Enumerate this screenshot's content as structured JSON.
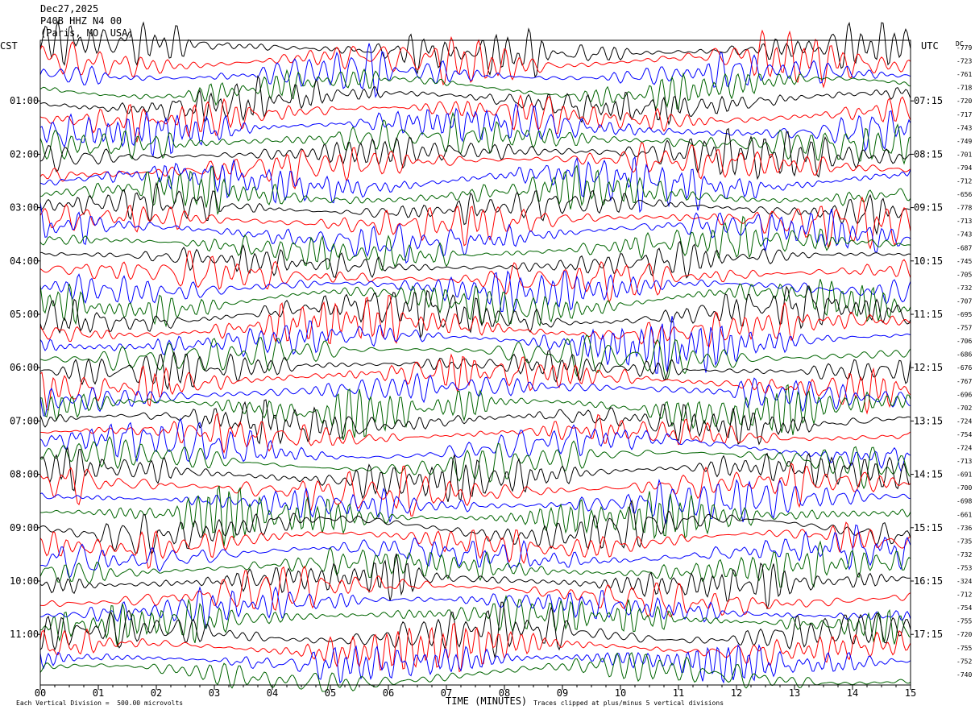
{
  "header": {
    "date": "Dec27,2025",
    "station": "P40B HHZ N4 00",
    "location": "(Paris, MO, USA)"
  },
  "left_tz": "CST",
  "right_tz": "UTC",
  "dc_header": "DC",
  "footer": {
    "scale_note": "Each Vertical Division =  500.00 microvolts",
    "clip_note": "Traces clipped at plus/minus 5 vertical divisions"
  },
  "chart_data": {
    "type": "line",
    "title": "",
    "xlabel": "TIME (MINUTES)",
    "ylabel": "",
    "xlim": [
      0,
      15
    ],
    "x_ticks": [
      "00",
      "01",
      "02",
      "03",
      "04",
      "05",
      "06",
      "07",
      "08",
      "09",
      "10",
      "11",
      "12",
      "13",
      "14",
      "15"
    ],
    "left_hour_labels": [
      "01:00",
      "02:00",
      "03:00",
      "04:00",
      "05:00",
      "06:00",
      "07:00",
      "08:00",
      "09:00",
      "10:00",
      "11:00"
    ],
    "right_hour_labels": [
      "07:15",
      "08:15",
      "09:15",
      "10:15",
      "11:15",
      "12:15",
      "13:15",
      "14:15",
      "15:15",
      "16:15",
      "17:15"
    ],
    "trace_colors": [
      "#000000",
      "#ff0000",
      "#0000ff",
      "#006400"
    ],
    "trace_count": 48,
    "dc_offsets": [
      -779,
      -723,
      -761,
      -718,
      -720,
      -717,
      -743,
      -749,
      -701,
      -794,
      -712,
      -656,
      -778,
      -713,
      -743,
      -687,
      -745,
      -705,
      -732,
      -707,
      -695,
      -757,
      -706,
      -686,
      -676,
      -767,
      -696,
      -702,
      -724,
      -754,
      -724,
      -713,
      -691,
      -700,
      -698,
      -661,
      -736,
      -735,
      -732,
      -753,
      -324,
      -712,
      -754,
      -755,
      -720,
      -755,
      -752,
      -740
    ]
  }
}
